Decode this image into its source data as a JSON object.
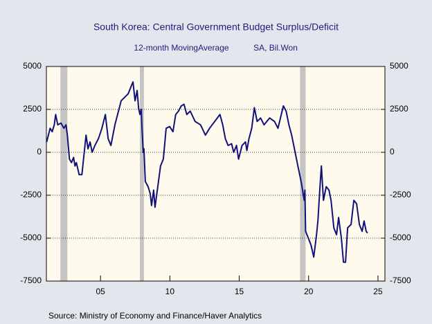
{
  "chart_data": {
    "type": "line",
    "title": "South Korea: Central Government Budget Surplus/Deficit",
    "subtitle": "12-month MovingAverage",
    "units": "SA, Bil.Won",
    "source": "Source:  Ministry of Economy and Finance/Haver Analytics",
    "xlim": [
      2001.1,
      2025.5
    ],
    "xticks": [
      {
        "value": 2005,
        "label": "05"
      },
      {
        "value": 2010,
        "label": "10"
      },
      {
        "value": 2015,
        "label": "15"
      },
      {
        "value": 2020,
        "label": "20"
      },
      {
        "value": 2025,
        "label": "25"
      }
    ],
    "ylim": [
      -7500,
      5000
    ],
    "yticks": [
      -7500,
      -5000,
      -2500,
      0,
      2500,
      5000
    ],
    "y2lim": [
      -7500,
      5000
    ],
    "y2ticks": [
      -7500,
      -5000,
      -2500,
      0,
      2500,
      5000
    ],
    "grid": true,
    "shaded_regions": [
      [
        2002.11,
        2002.61
      ],
      [
        2007.84,
        2008.13
      ],
      [
        2019.38,
        2019.78
      ]
    ],
    "shade_color": "#c4c4c4",
    "series": [
      {
        "color": "#10107a",
        "x": [
          2001.12,
          2001.37,
          2001.52,
          2001.67,
          2001.77,
          2001.92,
          2002.16,
          2002.36,
          2002.51,
          2002.61,
          2002.76,
          2002.91,
          2003.06,
          2003.16,
          2003.26,
          2003.46,
          2003.66,
          2003.96,
          2004.1,
          2004.25,
          2004.4,
          2004.6,
          2004.85,
          2005.1,
          2005.35,
          2005.55,
          2005.75,
          2006.04,
          2006.49,
          2006.74,
          2006.99,
          2007.34,
          2007.49,
          2007.64,
          2007.74,
          2007.84,
          2007.94,
          2007.99,
          2008.08,
          2008.13,
          2008.23,
          2008.43,
          2008.58,
          2008.68,
          2008.83,
          2008.93,
          2009.13,
          2009.33,
          2009.53,
          2009.73,
          2009.98,
          2010.22,
          2010.42,
          2010.62,
          2010.82,
          2011.02,
          2011.22,
          2011.47,
          2011.82,
          2012.21,
          2012.56,
          2012.86,
          2013.61,
          2013.81,
          2014.0,
          2014.2,
          2014.45,
          2014.6,
          2014.8,
          2014.95,
          2015.2,
          2015.45,
          2015.55,
          2015.7,
          2015.9,
          2016.09,
          2016.29,
          2016.54,
          2016.79,
          2017.19,
          2017.54,
          2017.79,
          2018.18,
          2018.38,
          2018.58,
          2018.78,
          2019.03,
          2019.23,
          2019.48,
          2019.68,
          2019.73,
          2019.78,
          2019.98,
          2020.17,
          2020.37,
          2020.57,
          2020.67,
          2020.82,
          2020.92,
          2021.07,
          2021.27,
          2021.47,
          2021.62,
          2021.82,
          2022.01,
          2022.16,
          2022.36,
          2022.51,
          2022.66,
          2022.81,
          2023.06,
          2023.26,
          2023.46,
          2023.66,
          2023.86,
          2024.0,
          2024.15,
          2024.25
        ],
        "values": [
          600,
          1400,
          1200,
          1600,
          2200,
          1600,
          1700,
          1400,
          1600,
          1000,
          -400,
          -600,
          -300,
          -800,
          -600,
          -1300,
          -1300,
          1000,
          200,
          600,
          0,
          400,
          800,
          1400,
          2200,
          800,
          400,
          1600,
          3000,
          3200,
          3400,
          4100,
          3000,
          3600,
          2600,
          2200,
          2500,
          1400,
          0,
          200,
          -1700,
          -2000,
          -2400,
          -3100,
          -2200,
          -3200,
          -2000,
          -800,
          -400,
          1400,
          1500,
          1200,
          2200,
          2400,
          2700,
          2800,
          2200,
          2400,
          1800,
          1600,
          1000,
          1400,
          2200,
          1600,
          800,
          400,
          500,
          0,
          400,
          -400,
          400,
          600,
          100,
          800,
          1400,
          2600,
          1800,
          2000,
          1600,
          2000,
          1800,
          1400,
          2700,
          2400,
          1600,
          1000,
          0,
          -800,
          -1800,
          -2800,
          -2200,
          -4600,
          -5000,
          -5400,
          -6100,
          -4800,
          -4000,
          -2000,
          -800,
          -2800,
          -2000,
          -2200,
          -2800,
          -4400,
          -4800,
          -3800,
          -5000,
          -6400,
          -6400,
          -4400,
          -4200,
          -2800,
          -3000,
          -4200,
          -4600,
          -4000,
          -4600,
          -4700
        ]
      }
    ]
  }
}
